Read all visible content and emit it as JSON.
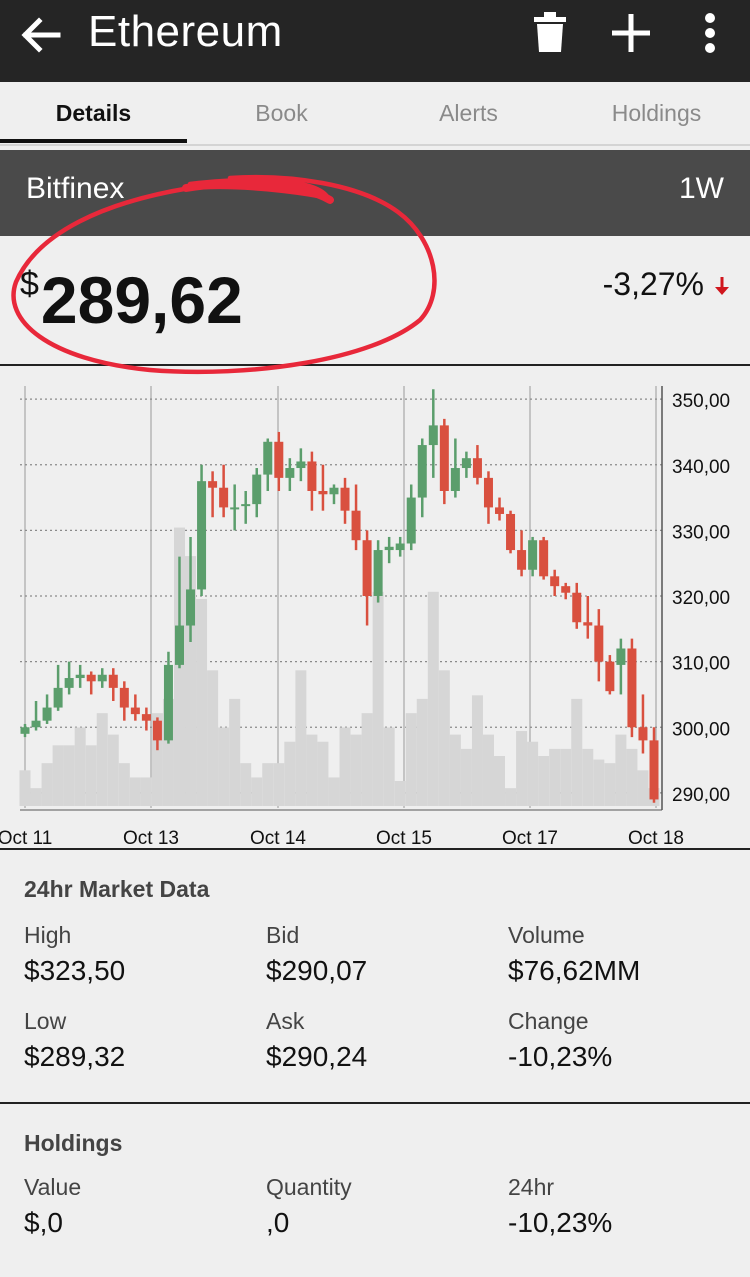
{
  "header": {
    "title": "Ethereum",
    "back_icon": "arrow-left-icon",
    "actions": [
      "trash-icon",
      "plus-icon",
      "more-vert-icon"
    ]
  },
  "tabs": [
    "Details",
    "Book",
    "Alerts",
    "Holdings"
  ],
  "active_tab": "Details",
  "exchange": {
    "name": "Bitfinex",
    "range": "1W"
  },
  "price": {
    "currency": "$",
    "value": "289,62",
    "change": "-3,27%",
    "direction": "down"
  },
  "colors": {
    "up": "#5b9e6c",
    "down": "#d9503f",
    "volume": "#d6d6d6",
    "annotation": "#e8283a"
  },
  "chart_data": {
    "type": "candlestick",
    "x_tick_labels": [
      "Oct 11",
      "Oct 13",
      "Oct 14",
      "Oct 15",
      "Oct 17",
      "Oct 18"
    ],
    "y_tick_labels": [
      "350,00",
      "340,00",
      "330,00",
      "320,00",
      "310,00",
      "300,00",
      "290,00"
    ],
    "ylim": [
      288,
      352
    ],
    "y_axis_position": "right",
    "grid": true,
    "candles": [
      [
        299,
        300,
        298.5,
        300.5
      ],
      [
        300,
        301,
        299.5,
        304
      ],
      [
        301,
        303,
        300.5,
        305
      ],
      [
        303,
        306,
        302.5,
        309.5
      ],
      [
        306,
        307.5,
        305,
        310
      ],
      [
        307.5,
        308,
        306,
        309.5
      ],
      [
        308,
        307,
        305,
        308.5
      ],
      [
        307,
        308,
        306,
        309
      ],
      [
        308,
        306,
        304,
        309
      ],
      [
        306,
        303,
        301,
        307
      ],
      [
        303,
        302,
        301,
        305
      ],
      [
        302,
        301,
        299.5,
        303
      ],
      [
        301,
        298,
        296.5,
        301.5
      ],
      [
        298,
        309.5,
        297.5,
        311.5
      ],
      [
        309.5,
        315.5,
        309,
        326
      ],
      [
        315.5,
        321,
        313,
        329
      ],
      [
        321,
        337.5,
        320,
        340
      ],
      [
        337.5,
        336.5,
        332,
        339
      ],
      [
        336.5,
        333.5,
        332,
        340
      ],
      [
        333.5,
        333.5,
        330,
        337
      ],
      [
        334,
        334,
        331,
        336
      ],
      [
        334,
        338.5,
        332,
        339.5
      ],
      [
        338.5,
        343.5,
        336,
        344
      ],
      [
        343.5,
        338,
        336,
        345
      ],
      [
        338,
        339.5,
        336,
        341
      ],
      [
        339.5,
        340.5,
        337.5,
        342.5
      ],
      [
        340.5,
        336,
        333,
        342
      ],
      [
        336,
        335.5,
        333,
        340
      ],
      [
        335.5,
        336.5,
        334,
        337
      ],
      [
        336.5,
        333,
        331,
        338
      ],
      [
        333,
        328.5,
        327,
        337
      ],
      [
        328.5,
        320,
        315.5,
        330
      ],
      [
        320,
        327,
        319,
        328.5
      ],
      [
        327,
        327.5,
        325,
        329
      ],
      [
        327,
        328,
        326,
        329
      ],
      [
        328,
        335,
        327,
        337
      ],
      [
        335,
        343,
        332,
        344
      ],
      [
        343,
        346,
        338,
        351.5
      ],
      [
        346,
        336,
        334,
        347
      ],
      [
        336,
        339.5,
        335,
        344
      ],
      [
        339.5,
        341,
        338,
        342
      ],
      [
        341,
        338,
        337,
        343
      ],
      [
        338,
        333.5,
        331,
        339
      ],
      [
        333.5,
        332.5,
        331.5,
        335
      ],
      [
        332.5,
        327,
        326.5,
        333
      ],
      [
        327,
        324,
        323,
        330
      ],
      [
        324,
        328.5,
        323,
        329
      ],
      [
        328.5,
        323,
        322.5,
        329
      ],
      [
        323,
        321.5,
        320,
        324
      ],
      [
        321.5,
        320.5,
        319.5,
        322
      ],
      [
        320.5,
        316,
        315,
        322
      ],
      [
        316,
        315.5,
        313.5,
        320
      ],
      [
        315.5,
        310,
        307,
        318
      ],
      [
        310,
        305.5,
        305,
        311
      ],
      [
        309.5,
        312,
        305,
        313.5
      ],
      [
        312,
        300,
        298.5,
        313.5
      ],
      [
        300,
        298,
        296,
        305
      ],
      [
        298,
        289,
        288.5,
        300
      ]
    ],
    "volume": [
      0.1,
      0.05,
      0.12,
      0.17,
      0.17,
      0.22,
      0.17,
      0.26,
      0.2,
      0.12,
      0.08,
      0.08,
      0.26,
      0.3,
      0.78,
      0.7,
      0.58,
      0.38,
      0.22,
      0.3,
      0.12,
      0.08,
      0.12,
      0.12,
      0.18,
      0.38,
      0.2,
      0.18,
      0.08,
      0.22,
      0.2,
      0.26,
      0.6,
      0.22,
      0.07,
      0.26,
      0.3,
      0.6,
      0.38,
      0.2,
      0.16,
      0.31,
      0.2,
      0.14,
      0.05,
      0.21,
      0.18,
      0.14,
      0.16,
      0.16,
      0.3,
      0.16,
      0.13,
      0.12,
      0.2,
      0.16,
      0.1,
      0.05
    ]
  },
  "market": {
    "title": "24hr Market Data",
    "items": [
      {
        "label": "High",
        "value": "$323,50"
      },
      {
        "label": "Bid",
        "value": "$290,07"
      },
      {
        "label": "Volume",
        "value": "$76,62MM"
      },
      {
        "label": "Low",
        "value": "$289,32"
      },
      {
        "label": "Ask",
        "value": "$290,24"
      },
      {
        "label": "Change",
        "value": "-10,23%"
      }
    ]
  },
  "holdings": {
    "title": "Holdings",
    "items": [
      {
        "label": "Value",
        "value": "$,0"
      },
      {
        "label": "Quantity",
        "value": ",0"
      },
      {
        "label": "24hr",
        "value": "-10,23%"
      }
    ]
  }
}
